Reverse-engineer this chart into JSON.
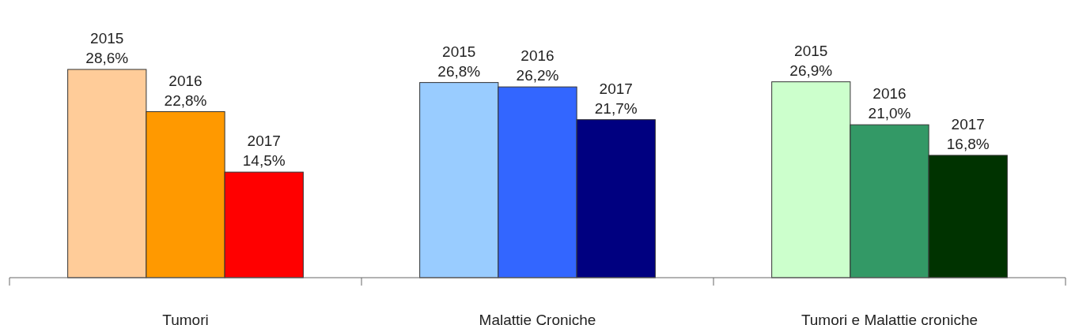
{
  "chart_data": {
    "type": "bar",
    "categories": [
      "Tumori",
      "Malattie Croniche",
      "Tumori e Malattie croniche"
    ],
    "series": [
      {
        "name": "2015",
        "colors": [
          "#ffcc99",
          "#99ccff",
          "#ccffcc"
        ],
        "values": [
          28.6,
          26.8,
          26.9
        ],
        "value_labels": [
          "28,6%",
          "26,8%",
          "26,9%"
        ]
      },
      {
        "name": "2016",
        "colors": [
          "#ff9900",
          "#3366ff",
          "#339966"
        ],
        "values": [
          22.8,
          26.2,
          21.0
        ],
        "value_labels": [
          "22,8%",
          "26,2%",
          "21,0%"
        ]
      },
      {
        "name": "2017",
        "colors": [
          "#ff0000",
          "#000080",
          "#003300"
        ],
        "values": [
          14.5,
          21.7,
          16.8
        ],
        "value_labels": [
          "14,5%",
          "21,7%",
          "16,8%"
        ]
      }
    ],
    "legend": false
  }
}
